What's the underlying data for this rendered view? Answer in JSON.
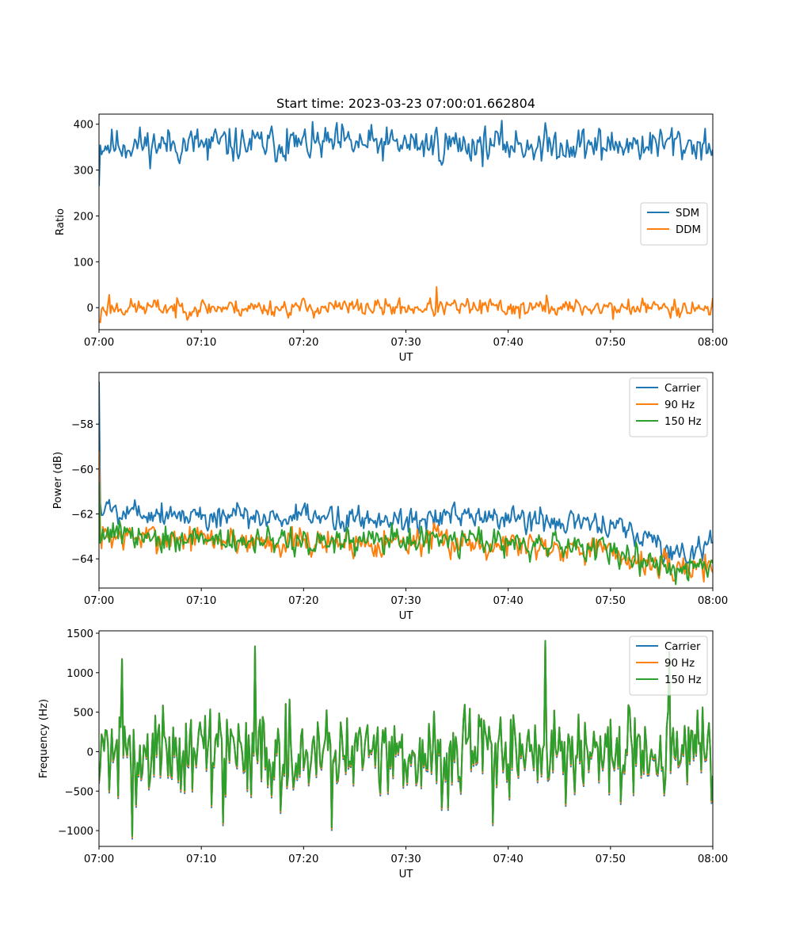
{
  "figure": {
    "title": "Start time: 2023-03-23 07:00:01.662804"
  },
  "chart_data": [
    {
      "type": "line",
      "title": "Start time: 2023-03-23 07:00:01.662804",
      "xlabel": "UT",
      "ylabel": "Ratio",
      "xlim": [
        0,
        60
      ],
      "ylim": [
        -48,
        422
      ],
      "xticks": [
        "07:00",
        "07:10",
        "07:20",
        "07:30",
        "07:40",
        "07:50",
        "08:00"
      ],
      "yticks": [
        0,
        100,
        200,
        300,
        400
      ],
      "ytick_labels": [
        "0",
        "100",
        "200",
        "300",
        "400"
      ],
      "legend": "center-right",
      "x_step_min": 0.125,
      "series": [
        {
          "name": "SDM",
          "color": "#1f77b4",
          "start": 265,
          "mean": 356,
          "noise": 18,
          "seed": 11,
          "peaks": [
            [
              18.4,
              390
            ],
            [
              23.8,
              400
            ],
            [
              33.0,
              393
            ],
            [
              56.0,
              392
            ]
          ],
          "dips": [
            [
              10.6,
              322
            ],
            [
              33.2,
              320
            ],
            [
              43.2,
              320
            ],
            [
              49.1,
              322
            ]
          ]
        },
        {
          "name": "DDM",
          "color": "#ff7f0e",
          "start": -30,
          "mean": 0,
          "noise": 9,
          "seed": 23,
          "peaks": [
            [
              1.0,
              28
            ],
            [
              33.0,
              45
            ],
            [
              43.7,
              27
            ],
            [
              56.2,
              18
            ]
          ],
          "dips": [
            [
              0.1,
              -32
            ],
            [
              7.5,
              -22
            ],
            [
              41.1,
              -23
            ],
            [
              50.3,
              -25
            ]
          ]
        }
      ]
    },
    {
      "type": "line",
      "xlabel": "UT",
      "ylabel": "Power (dB)",
      "xlim": [
        0,
        60
      ],
      "ylim": [
        -65.3,
        -55.7
      ],
      "xticks": [
        "07:00",
        "07:10",
        "07:20",
        "07:30",
        "07:40",
        "07:50",
        "08:00"
      ],
      "yticks": [
        -64,
        -62,
        -60,
        -58
      ],
      "ytick_labels": [
        "−64",
        "−62",
        "−60",
        "−58"
      ],
      "legend": "upper-right",
      "x_step_min": 0.125,
      "series": [
        {
          "name": "Carrier",
          "color": "#1f77b4",
          "start": -56.1,
          "noise": 0.28,
          "seed": 5,
          "trend": [
            [
              0,
              -61.7
            ],
            [
              10,
              -62.1
            ],
            [
              20,
              -62.2
            ],
            [
              30,
              -62.2
            ],
            [
              40,
              -62.2
            ],
            [
              48,
              -62.4
            ],
            [
              52,
              -62.8
            ],
            [
              56,
              -63.7
            ],
            [
              58,
              -63.8
            ],
            [
              60,
              -63.1
            ]
          ]
        },
        {
          "name": "90 Hz",
          "color": "#ff7f0e",
          "start": -59.2,
          "noise": 0.3,
          "seed": 7,
          "trend": [
            [
              0,
              -63.0
            ],
            [
              10,
              -63.1
            ],
            [
              20,
              -63.3
            ],
            [
              30,
              -63.2
            ],
            [
              40,
              -63.3
            ],
            [
              48,
              -63.5
            ],
            [
              52,
              -64.0
            ],
            [
              56,
              -64.5
            ],
            [
              60,
              -64.2
            ]
          ]
        },
        {
          "name": "150 Hz",
          "color": "#2ca02c",
          "start": -60.6,
          "noise": 0.3,
          "seed": 9,
          "trend": [
            [
              0,
              -62.8
            ],
            [
              10,
              -63.1
            ],
            [
              20,
              -63.3
            ],
            [
              30,
              -63.2
            ],
            [
              40,
              -63.2
            ],
            [
              48,
              -63.5
            ],
            [
              52,
              -64.0
            ],
            [
              56,
              -64.5
            ],
            [
              60,
              -64.4
            ]
          ]
        }
      ]
    },
    {
      "type": "line",
      "xlabel": "UT",
      "ylabel": "Frequency (Hz)",
      "xlim": [
        0,
        60
      ],
      "ylim": [
        -1200,
        1530
      ],
      "xticks": [
        "07:00",
        "07:10",
        "07:20",
        "07:30",
        "07:40",
        "07:50",
        "08:00"
      ],
      "yticks": [
        -1000,
        -500,
        0,
        500,
        1000,
        1500
      ],
      "ytick_labels": [
        "−1000",
        "−500",
        "0",
        "500",
        "1000",
        "1500"
      ],
      "legend": "upper-right",
      "x_step_min": 0.125,
      "base_noise": 420,
      "seed": 31,
      "peaks": [
        [
          2.2,
          1170
        ],
        [
          15.2,
          1330
        ],
        [
          43.6,
          1400
        ],
        [
          55.8,
          1260
        ]
      ],
      "dips": [
        [
          3.3,
          -1070
        ],
        [
          12.1,
          -900
        ],
        [
          22.7,
          -960
        ],
        [
          38.5,
          -900
        ]
      ],
      "series": [
        {
          "name": "Carrier",
          "color": "#1f77b4",
          "offset": -35
        },
        {
          "name": "90 Hz",
          "color": "#ff7f0e",
          "offset": -18
        },
        {
          "name": "150 Hz",
          "color": "#2ca02c",
          "offset": 0
        }
      ]
    }
  ]
}
